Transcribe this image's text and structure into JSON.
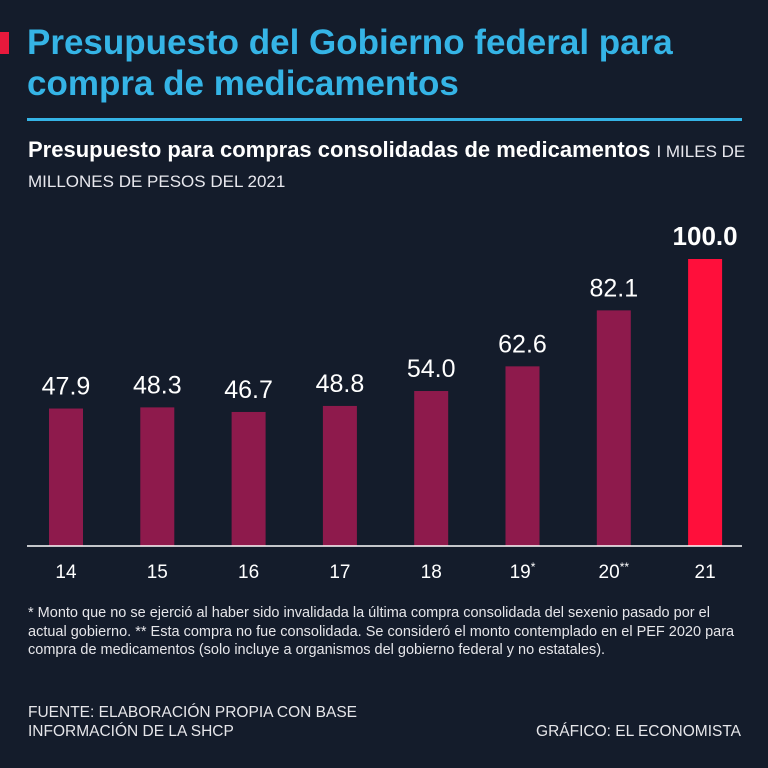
{
  "header": {
    "title": "Presupuesto del Gobierno federal para compra de medicamentos",
    "subtitle_bold": "Presupuesto para compras consolidadas de medicamentos",
    "subtitle_units": "I MILES DE MILLONES DE PESOS DEL 2021"
  },
  "colors": {
    "background": "#141c2b",
    "title": "#35b4e6",
    "bar": "#8e1a4c",
    "highlight_bar": "#ff0f3b",
    "accent": "#e8193c"
  },
  "chart_data": {
    "type": "bar",
    "title": "Presupuesto para compras consolidadas de medicamentos",
    "ylabel": "Miles de millones de pesos del 2021",
    "xlabel": "",
    "categories": [
      "14",
      "15",
      "16",
      "17",
      "18",
      "19",
      "20",
      "21"
    ],
    "category_marks": [
      "",
      "",
      "",
      "",
      "",
      "*",
      "**",
      ""
    ],
    "values": [
      47.9,
      48.3,
      46.7,
      48.8,
      54.0,
      62.6,
      82.1,
      100.0
    ],
    "value_labels": [
      "47.9",
      "48.3",
      "46.7",
      "48.8",
      "54.0",
      "62.6",
      "82.1",
      "100.0"
    ],
    "highlight_index": 7,
    "ylim": [
      0,
      100
    ],
    "grid": false
  },
  "footnote": "* Monto que no se ejerció al haber sido invalidada la última compra consolidada del sexenio pasado por el actual gobierno. ** Esta compra no fue consolidada. Se consideró el monto contemplado en el PEF 2020 para compra de medicamentos (solo incluye a organismos del gobierno federal y no estatales).",
  "source": "FUENTE: ELABORACIÓN PROPIA CON BASE INFORMACIÓN DE LA SHCP",
  "credit": "GRÁFICO: EL ECONOMISTA"
}
